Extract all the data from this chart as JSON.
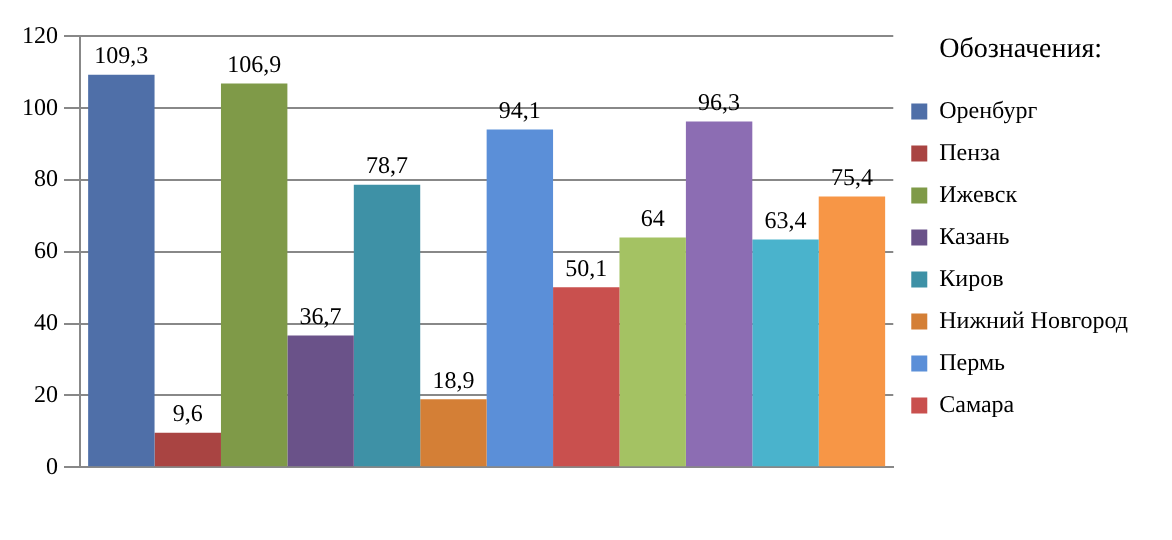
{
  "chart_data": {
    "type": "bar",
    "categories": [
      null
    ],
    "series": [
      {
        "name": "Оренбург",
        "color": "#4f6fa8",
        "values": [
          109.3
        ],
        "value_labels": [
          "109,3"
        ]
      },
      {
        "name": "Пенза",
        "color": "#a94442",
        "values": [
          9.6
        ],
        "value_labels": [
          "9,6"
        ]
      },
      {
        "name": "Ижевск",
        "color": "#7f9a48",
        "values": [
          106.9
        ],
        "value_labels": [
          "106,9"
        ]
      },
      {
        "name": "Казань",
        "color": "#6a5289",
        "values": [
          36.7
        ],
        "value_labels": [
          "36,7"
        ]
      },
      {
        "name": "Киров",
        "color": "#3e91a6",
        "values": [
          78.7
        ],
        "value_labels": [
          "78,7"
        ]
      },
      {
        "name": "Нижний Новгород",
        "color": "#d47f36",
        "values": [
          18.9
        ],
        "value_labels": [
          "18,9"
        ]
      },
      {
        "name": "Пермь",
        "color": "#5b8fd8",
        "values": [
          94.1
        ],
        "value_labels": [
          "94,1"
        ]
      },
      {
        "name": "Самара",
        "color": "#c9504e",
        "values": [
          50.1
        ],
        "value_labels": [
          "50,1"
        ]
      },
      {
        "color": "#a4c263",
        "values": [
          64
        ],
        "value_labels": [
          "64"
        ]
      },
      {
        "color": "#8c6db3",
        "values": [
          96.3
        ],
        "value_labels": [
          "96,3"
        ]
      },
      {
        "color": "#4ab3cc",
        "values": [
          63.4
        ],
        "value_labels": [
          "63,4"
        ]
      },
      {
        "color": "#f79646",
        "values": [
          75.4
        ],
        "value_labels": [
          "75,4"
        ]
      }
    ],
    "ylim": [
      0,
      120
    ],
    "yticks": [
      0,
      20,
      40,
      60,
      80,
      100,
      120
    ],
    "grid": "y",
    "legend": "right",
    "legend_title": "Обозначения:"
  }
}
